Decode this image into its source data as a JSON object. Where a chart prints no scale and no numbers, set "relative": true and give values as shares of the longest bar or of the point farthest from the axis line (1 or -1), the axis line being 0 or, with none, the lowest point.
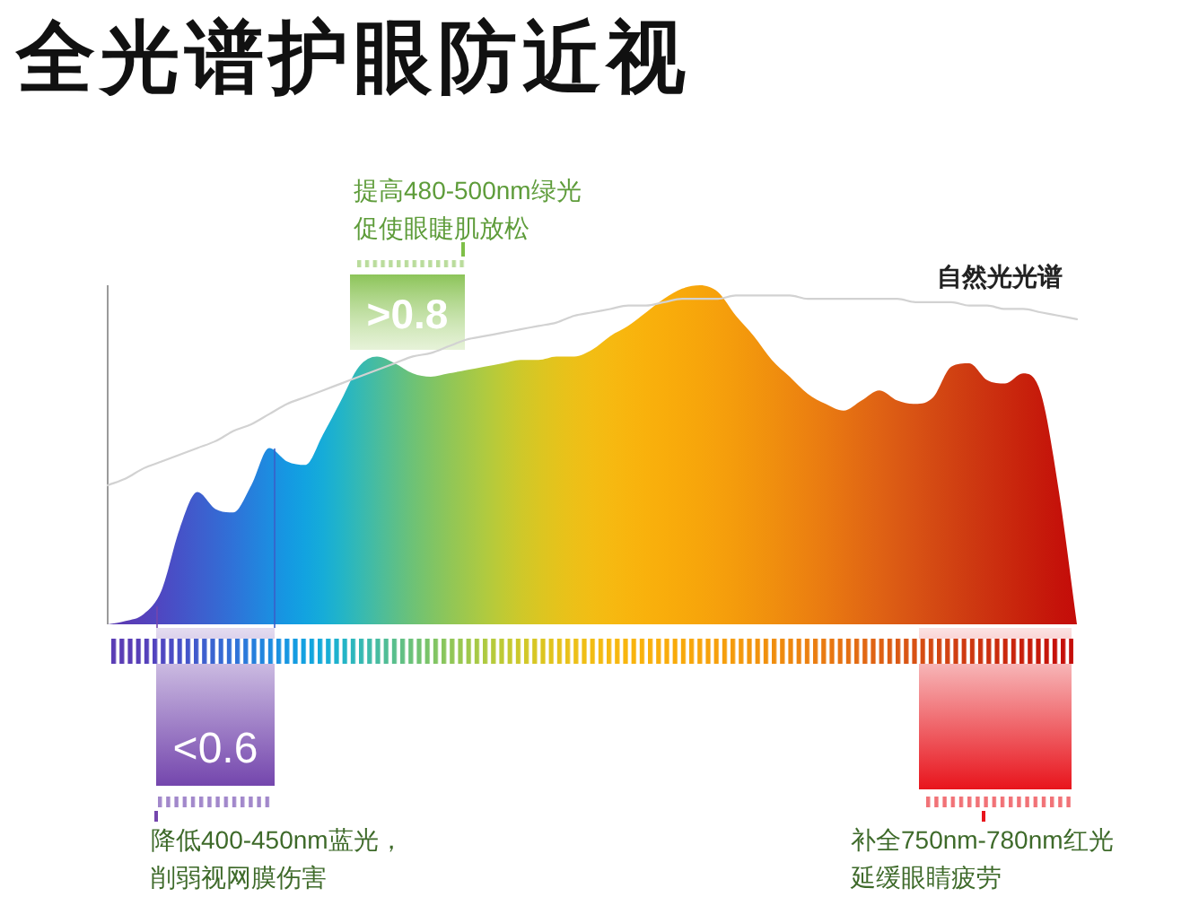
{
  "chart_data": {
    "type": "area",
    "title": "全光谱护眼防近视",
    "relative": true,
    "categories": [
      null,
      null,
      null,
      null,
      null,
      null,
      null,
      null,
      null,
      null,
      null,
      null,
      null,
      null,
      null,
      null,
      null,
      null,
      null,
      null,
      null,
      null,
      null,
      null,
      null,
      null,
      null,
      null,
      null,
      null,
      null,
      null,
      null,
      null,
      null,
      null,
      null,
      null,
      null,
      null,
      null,
      null,
      null,
      null,
      null,
      null,
      null,
      null,
      null,
      null,
      null,
      null,
      null,
      null,
      null
    ],
    "series": [
      {
        "colors": [
          "#5a3db5",
          "#5a3db5",
          "#5541bb",
          "#4e48c2",
          "#4652c8",
          "#3f5dcd",
          "#3767d2",
          "#2f72d8",
          "#267fdc",
          "#1d8ce0",
          "#1598e2",
          "#12a3e0",
          "#16acd8",
          "#22b4c8",
          "#34b9b4",
          "#48bc9f",
          "#5bbf8a",
          "#6dc276",
          "#7ec466",
          "#8fc658",
          "#9fc84c",
          "#afca40",
          "#bfca34",
          "#cec82a",
          "#dac622",
          "#e4c31c",
          "#ecc018",
          "#f2bd14",
          "#f6b911",
          "#f8b50e",
          "#f9b10c",
          "#f9ad0b",
          "#f8a90b",
          "#f7a50b",
          "#f6a00c",
          "#f49b0c",
          "#f2950d",
          "#f08f0e",
          "#ee880f",
          "#ec8110",
          "#e97a11",
          "#e67212",
          "#e26a13",
          "#df6214",
          "#db5a14",
          "#d85214",
          "#d44a13",
          "#d14212",
          "#ce3a11",
          "#cc3210",
          "#ca2a0e",
          "#c8220c",
          "#c61a0b",
          "#c5120a",
          "#c40c09"
        ],
        "values": [
          0,
          0.01,
          0.03,
          0.1,
          0.28,
          0.39,
          0.34,
          0.33,
          0.41,
          0.52,
          0.48,
          0.47,
          0.56,
          0.66,
          0.76,
          0.79,
          0.77,
          0.74,
          0.73,
          0.74,
          0.75,
          0.76,
          0.77,
          0.78,
          0.78,
          0.79,
          0.79,
          0.81,
          0.85,
          0.88,
          0.92,
          0.96,
          0.99,
          1,
          0.98,
          0.91,
          0.85,
          0.78,
          0.73,
          0.68,
          0.65,
          0.63,
          0.66,
          0.69,
          0.66,
          0.65,
          0.67,
          0.76,
          0.77,
          0.72,
          0.71,
          0.74,
          0.68,
          0.39,
          0
        ]
      },
      {
        "name": "自然光光谱",
        "type": "line",
        "color": "#d2d2d2",
        "values": [
          0.41,
          0.43,
          0.46,
          0.48,
          0.5,
          0.52,
          0.54,
          0.57,
          0.59,
          0.62,
          0.65,
          0.67,
          0.69,
          0.71,
          0.73,
          0.75,
          0.77,
          0.79,
          0.8,
          0.82,
          0.84,
          0.85,
          0.86,
          0.87,
          0.88,
          0.89,
          0.91,
          0.92,
          0.93,
          0.94,
          0.94,
          0.95,
          0.96,
          0.96,
          0.96,
          0.97,
          0.97,
          0.97,
          0.97,
          0.96,
          0.96,
          0.96,
          0.96,
          0.96,
          0.96,
          0.95,
          0.95,
          0.95,
          0.94,
          0.94,
          0.93,
          0.93,
          0.92,
          0.91,
          0.9
        ]
      }
    ],
    "annotations": [
      "提高480-500nm绿光",
      "促使眼睫肌放松",
      ">0.8",
      "<0.6",
      "降低400-450nm蓝光，",
      "削弱视网膜伤害",
      "补全750nm-780nm红光",
      "延缓眼睛疲劳"
    ]
  }
}
